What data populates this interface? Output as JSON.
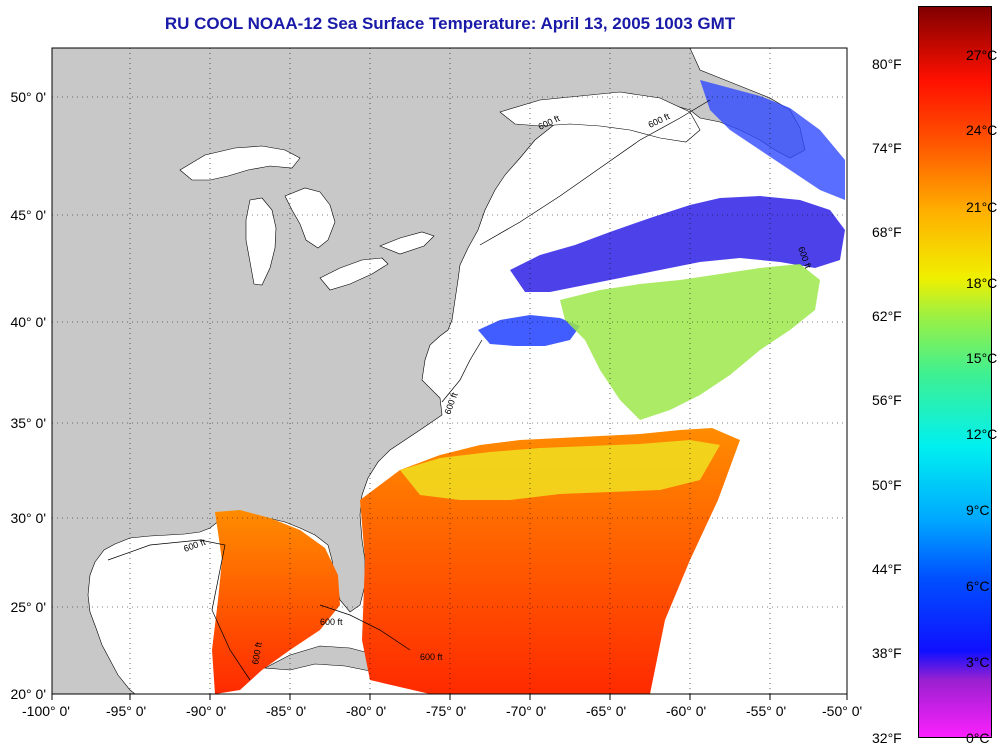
{
  "title": "RU COOL  NOAA-12  Sea Surface Temperature:  April 13, 2005 1003 GMT",
  "map": {
    "lat_labels": [
      "50° 0'",
      "45° 0'",
      "40° 0'",
      "35° 0'",
      "30° 0'",
      "25° 0'",
      "20° 0'"
    ],
    "lon_labels": [
      "-100° 0'",
      "-95° 0'",
      "-90° 0'",
      "-85° 0'",
      "-80° 0'",
      "-75° 0'",
      "-70° 0'",
      "-65° 0'",
      "-60° 0'",
      "-55° 0'",
      "-50° 0'"
    ],
    "isobath_labels": [
      "600 ft",
      "600 ft",
      "600 ft",
      "600 ft",
      "600 ft",
      "600 ft",
      "600 ft",
      "600 ft"
    ],
    "land_color": "#c8c8c8",
    "cloud_color": "#ffffff"
  },
  "colorbar": {
    "fahrenheit": [
      "80°F",
      "74°F",
      "68°F",
      "62°F",
      "56°F",
      "50°F",
      "44°F",
      "38°F",
      "32°F"
    ],
    "celsius": [
      "27°C",
      "24°C",
      "21°C",
      "18°C",
      "15°C",
      "12°C",
      "9°C",
      "6°C",
      "3°C",
      "0°C"
    ],
    "colors": [
      "#8b0000",
      "#e00000",
      "#ff4000",
      "#ff8000",
      "#ffc000",
      "#e8f000",
      "#a0f040",
      "#40f0a0",
      "#00f0f0",
      "#00a0ff",
      "#0040ff",
      "#2020e0",
      "#8020e0",
      "#ff20ff"
    ]
  }
}
